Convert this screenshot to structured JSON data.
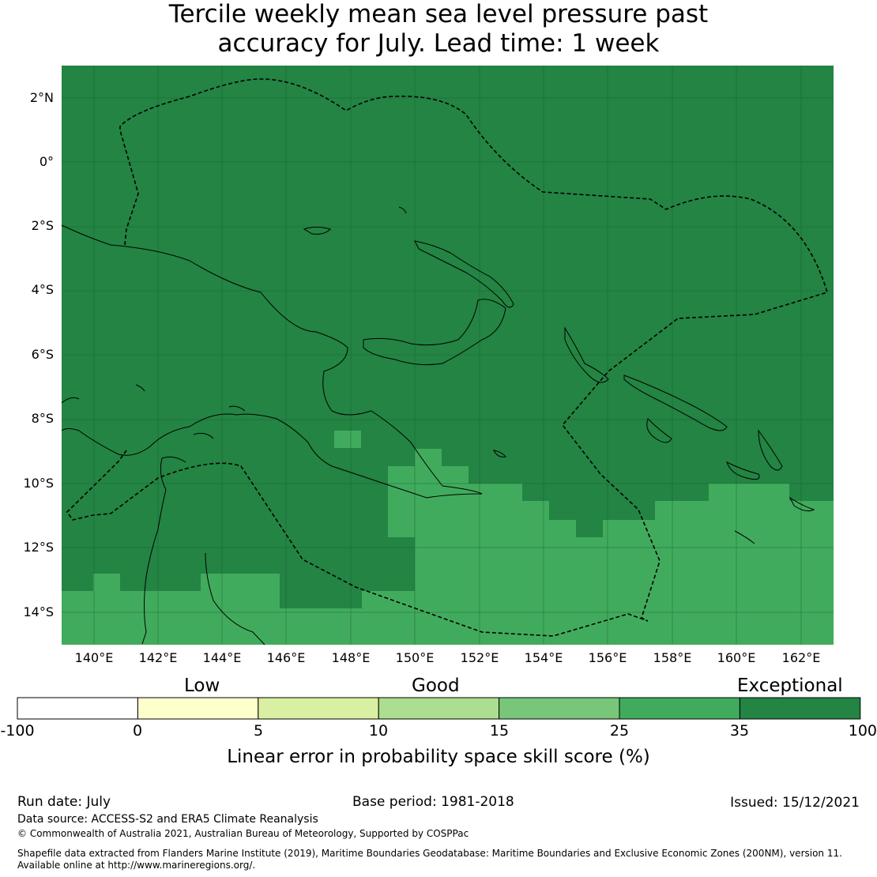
{
  "title": {
    "line1": "Tercile weekly mean sea level pressure past",
    "line2": "accuracy for July. Lead time: 1 week"
  },
  "map": {
    "lat_labels": [
      "2°N",
      "0°",
      "2°S",
      "4°S",
      "6°S",
      "8°S",
      "10°S",
      "12°S",
      "14°S"
    ],
    "lon_labels": [
      "140°E",
      "142°E",
      "144°E",
      "146°E",
      "148°E",
      "150°E",
      "152°E",
      "154°E",
      "156°E",
      "158°E",
      "160°E",
      "162°E"
    ],
    "colors": {
      "exceptional": "#238443",
      "green_25_35": "#41ab5d",
      "land_outline": "#000000"
    },
    "regions": [
      {
        "category": "25 to 35",
        "description": "south-east sea area"
      },
      {
        "category": "35 to 100",
        "description": "most of map"
      }
    ]
  },
  "colorbar": {
    "categories": [
      "Low",
      "Good",
      "Exceptional"
    ],
    "ticks": [
      "-100",
      "0",
      "5",
      "10",
      "15",
      "25",
      "35",
      "100"
    ],
    "colors": [
      "#ffffff",
      "#ffffcc",
      "#d9f0a3",
      "#addd8e",
      "#78c679",
      "#41ab5d",
      "#238443"
    ],
    "title": "Linear error in probability space skill score (%)"
  },
  "footer": {
    "run_date": "Run date: July",
    "base_period": "Base period: 1981-2018",
    "issued": "Issued: 15/12/2021",
    "data_source": "Data source: ACCESS-S2 and ERA5 Climate Reanalysis",
    "copyright": "© Commonwealth of Australia 2021, Australian Bureau of Meteorology, Supported by COSPPac",
    "shapefile_line1": "Shapefile data extracted from Flanders Marine Institute (2019), Maritime Boundaries Geodatabase: Maritime Boundaries and Exclusive Economic Zones (200NM), version 11.",
    "shapefile_line2": "Available online at http://www.marineregions.org/."
  }
}
